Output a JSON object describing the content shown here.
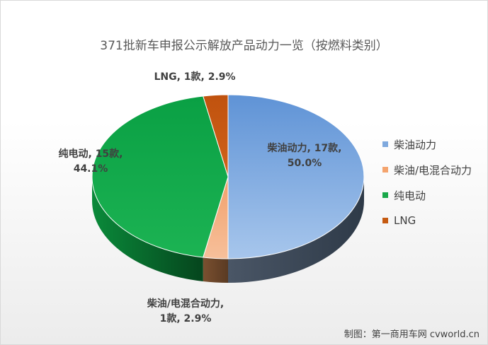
{
  "chart_data": {
    "type": "pie",
    "title": "371批新车申报公示解放产品动力一览（按燃料类别）",
    "slices": [
      {
        "name": "柴油动力",
        "count": 17,
        "count_label": "17款",
        "percent": 50.0,
        "percent_label": "50.0%",
        "color": "#7fa9de"
      },
      {
        "name": "柴油/电混合动力",
        "count": 1,
        "count_label": "1款",
        "percent": 2.9,
        "percent_label": "2.9%",
        "color": "#f4a46e"
      },
      {
        "name": "纯电动",
        "count": 15,
        "count_label": "15款",
        "percent": 44.1,
        "percent_label": "44.1%",
        "color": "#19a84a"
      },
      {
        "name": "LNG",
        "count": 1,
        "count_label": "1款",
        "percent": 2.9,
        "percent_label": "2.9%",
        "color": "#c55a11"
      }
    ],
    "data_labels": [
      {
        "line1": "柴油动力, 17款,",
        "line2": "50.0%"
      },
      {
        "line1": "柴油/电混合动力,",
        "line2": "1款, 2.9%"
      },
      {
        "line1": "纯电动, 15款,",
        "line2": "44.1%"
      },
      {
        "line1": "LNG, 1款, 2.9%",
        "line2": ""
      }
    ],
    "legend_position": "right"
  },
  "credit": "制图：第一商用车网 cvworld.cn"
}
